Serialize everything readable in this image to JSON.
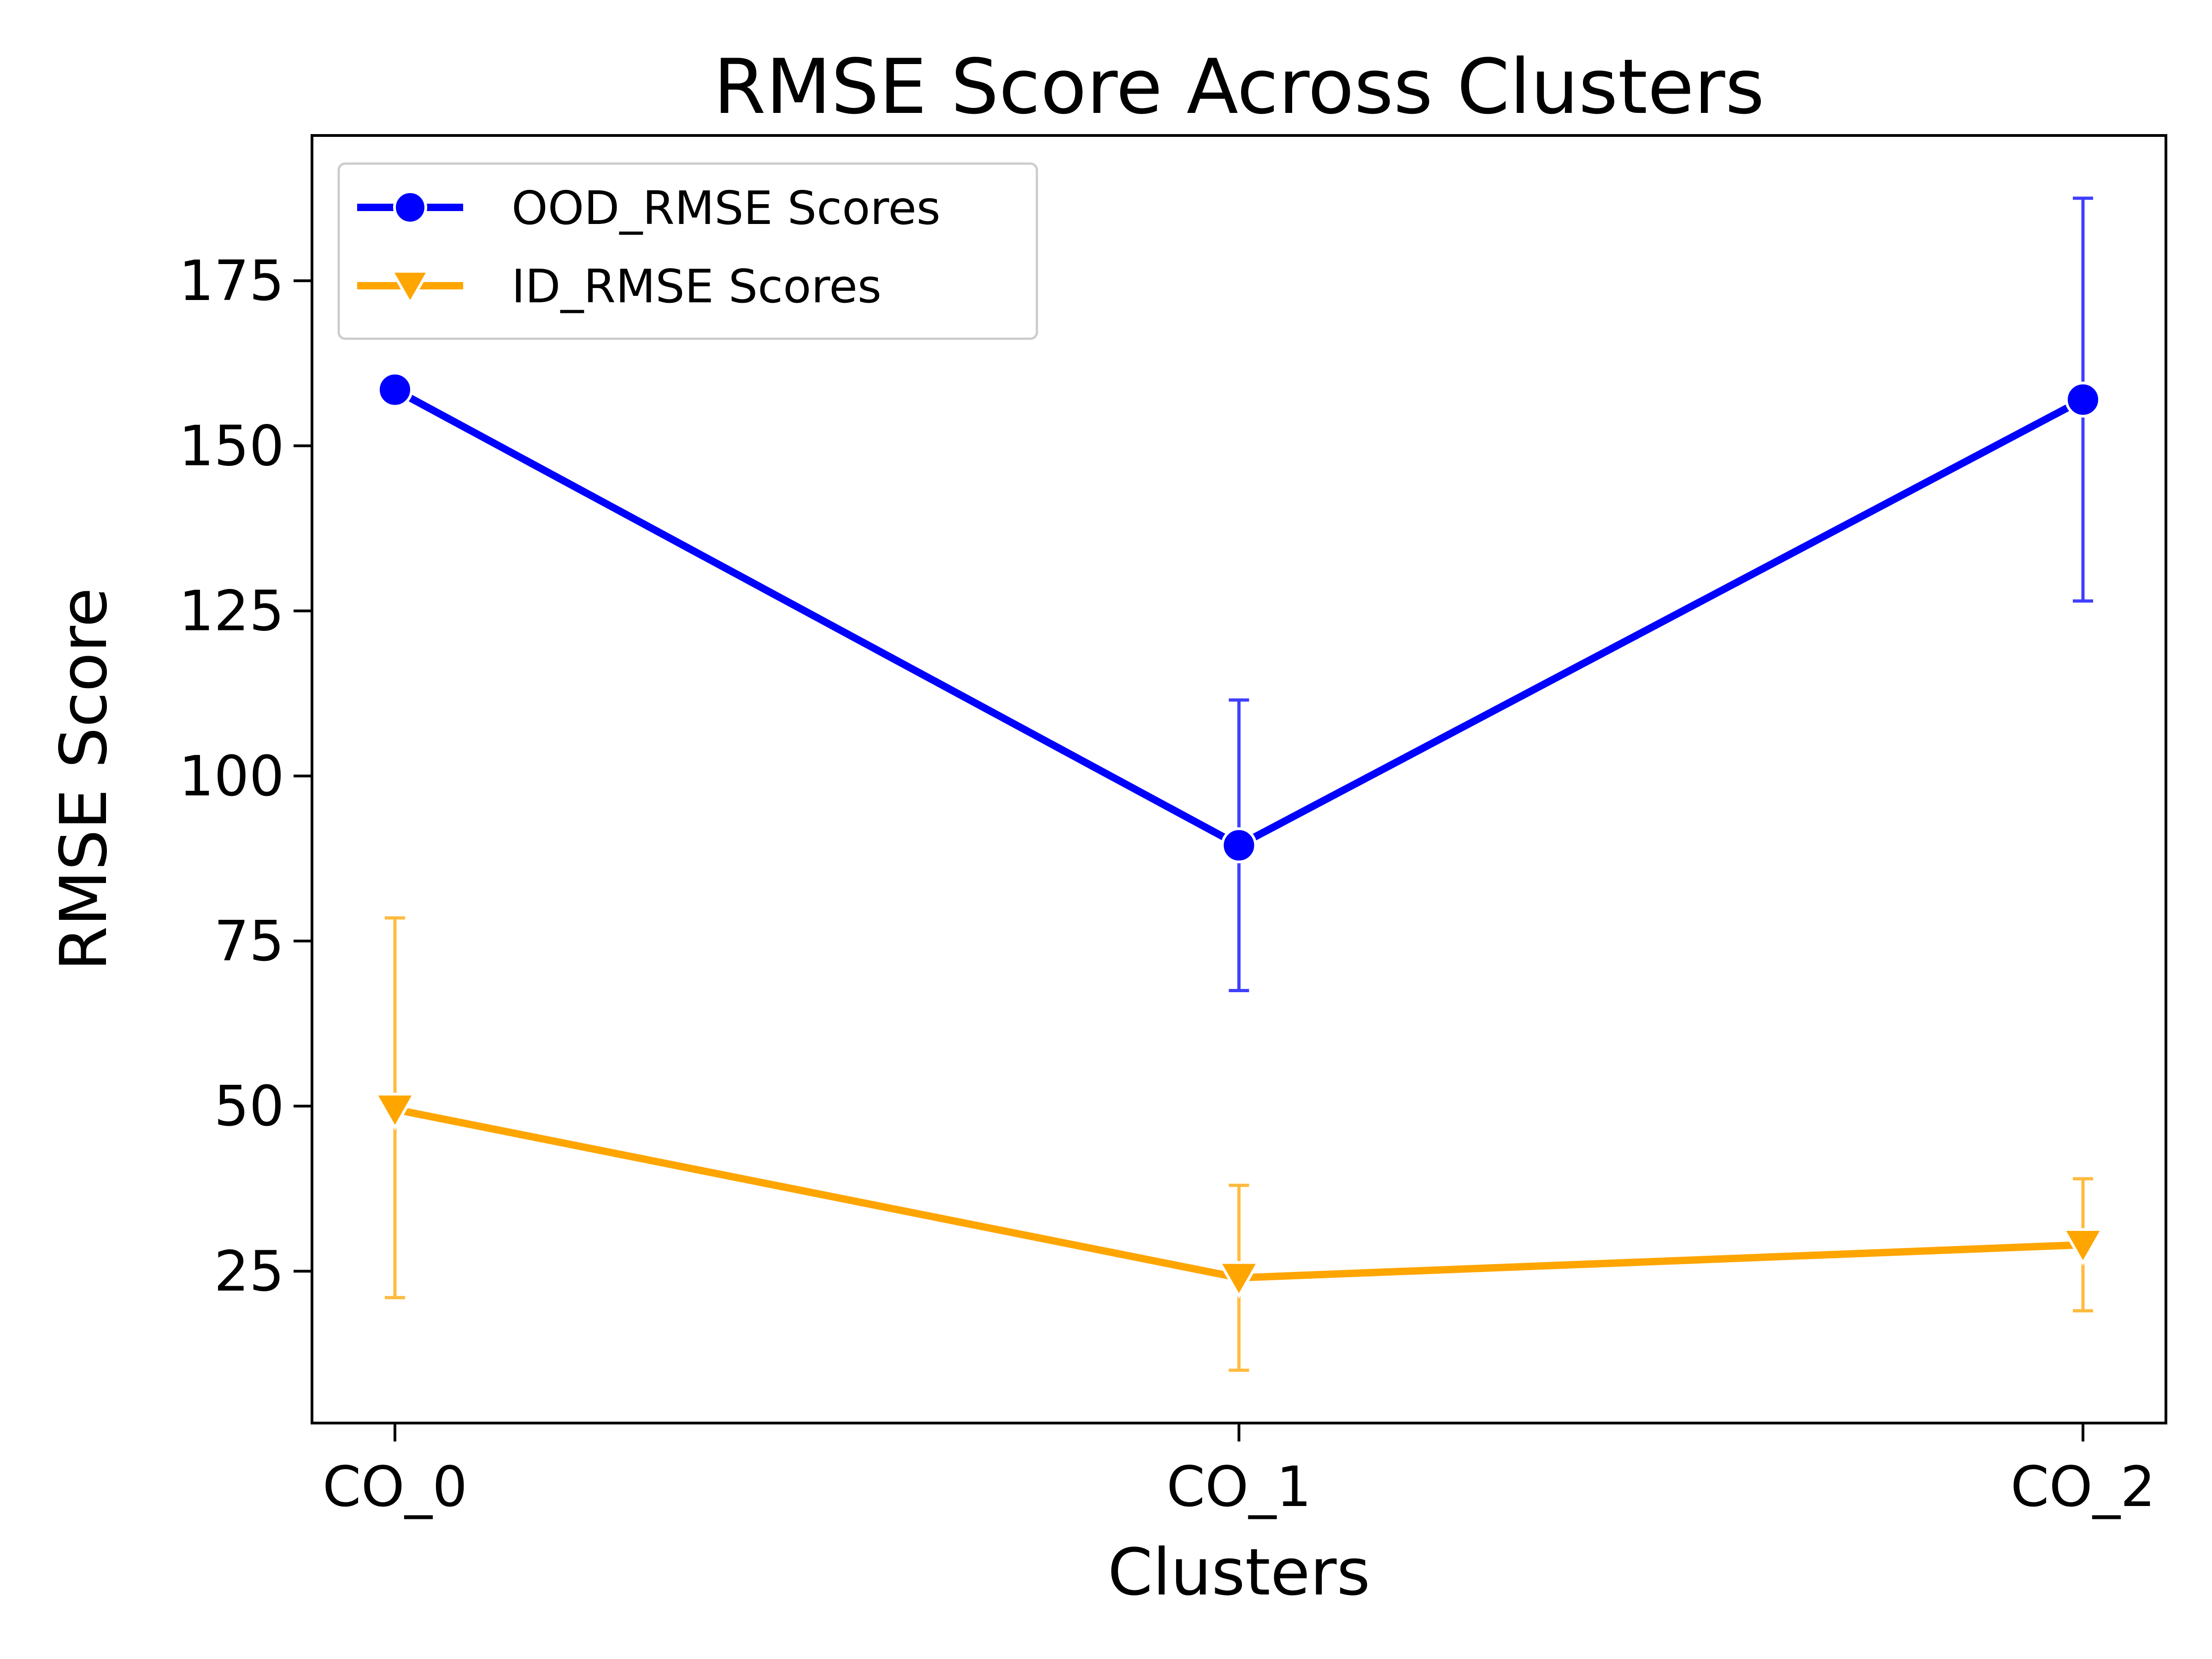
{
  "chart_data": {
    "type": "line",
    "title": "RMSE Score Across Clusters",
    "xlabel": "Clusters",
    "ylabel": "RMSE Score",
    "categories": [
      "CO_0",
      "CO_1",
      "CO_2"
    ],
    "ylim": [
      2,
      197
    ],
    "yticks": [
      25,
      50,
      75,
      100,
      125,
      150,
      175
    ],
    "ytick_labels": [
      "25",
      "50",
      "75",
      "100",
      "125",
      "150",
      "175"
    ],
    "grid": false,
    "legend_position": "top-left",
    "series": [
      {
        "name": "OOD_RMSE Scores",
        "color": "#0000ff",
        "marker": "circle",
        "values": [
          158.5,
          89.5,
          157
        ],
        "err_low": [
          null,
          67.5,
          126.5
        ],
        "err_high": [
          null,
          111.5,
          187.5
        ]
      },
      {
        "name": "ID_RMSE Scores",
        "color": "#ffa500",
        "marker": "triangle-down",
        "values": [
          49.5,
          24,
          29
        ],
        "err_low": [
          21,
          10,
          19
        ],
        "err_high": [
          78.5,
          38,
          39
        ]
      }
    ]
  }
}
